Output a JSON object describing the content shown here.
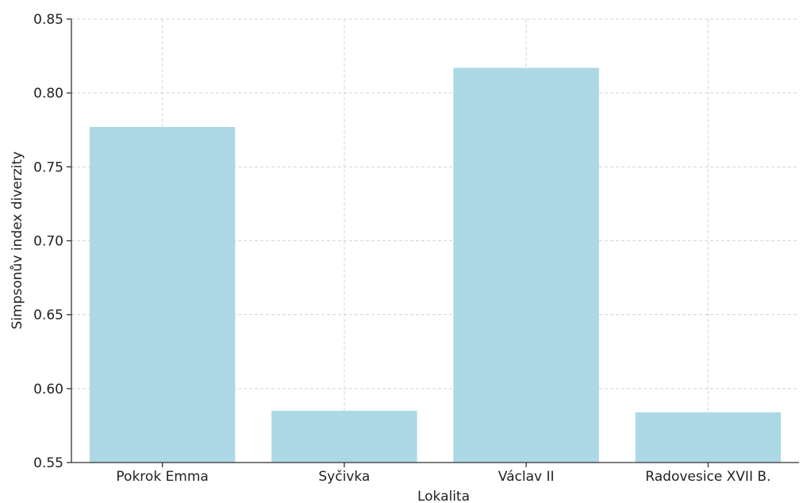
{
  "chart_data": {
    "type": "bar",
    "categories": [
      "Pokrok Emma",
      "Syčivka",
      "Václav II",
      "Radovesice XVII B."
    ],
    "values": [
      0.777,
      0.585,
      0.817,
      0.584
    ],
    "title": "",
    "xlabel": "Lokalita",
    "ylabel": "Simpsonův index diverzity",
    "ylim": [
      0.55,
      0.85
    ],
    "yticks": [
      "0.55",
      "0.60",
      "0.65",
      "0.70",
      "0.75",
      "0.80",
      "0.85"
    ],
    "grid": true,
    "bar_color": "#add8e6"
  }
}
